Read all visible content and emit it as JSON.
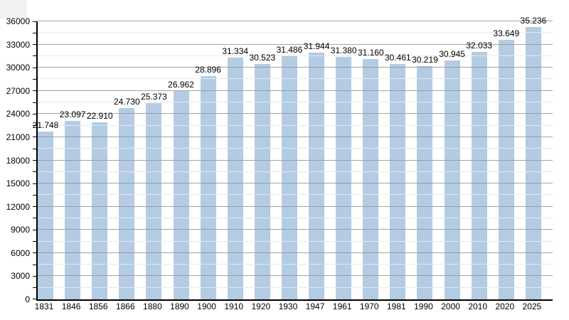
{
  "chart_data": {
    "type": "bar",
    "title": "",
    "xlabel": "",
    "ylabel": "",
    "categories": [
      "1831",
      "1846",
      "1856",
      "1866",
      "1880",
      "1890",
      "1900",
      "1910",
      "1920",
      "1930",
      "1947",
      "1961",
      "1970",
      "1981",
      "1990",
      "2000",
      "2010",
      "2020",
      "2025"
    ],
    "values": [
      21748,
      23097,
      22910,
      24730,
      25373,
      26962,
      28896,
      31334,
      30523,
      31486,
      31944,
      31380,
      31160,
      30461,
      30219,
      30945,
      32033,
      33649,
      35236
    ],
    "value_labels": [
      "21.748",
      "23.097",
      "22.910",
      "24.730",
      "25.373",
      "26.962",
      "28.896",
      "31.334",
      "30.523",
      "31.486",
      "31.944",
      "31.380",
      "31.160",
      "30.461",
      "30.219",
      "30.945",
      "32.033",
      "33.649",
      "35.236"
    ],
    "ylim": [
      0,
      36000
    ],
    "y_major_step": 3000,
    "y_minor_step": 1500,
    "y_tick_labels": [
      "0",
      "3000",
      "6000",
      "9000",
      "12000",
      "15000",
      "18000",
      "21000",
      "24000",
      "27000",
      "30000",
      "33000",
      "36000"
    ],
    "grid": true,
    "legend": "none",
    "colors": {
      "bar": "#b4cce3",
      "major_grid": "#949494",
      "minor_grid": "#e8e8e8",
      "axis": "#000000",
      "text": "#000000",
      "background": "#ffffff"
    }
  }
}
